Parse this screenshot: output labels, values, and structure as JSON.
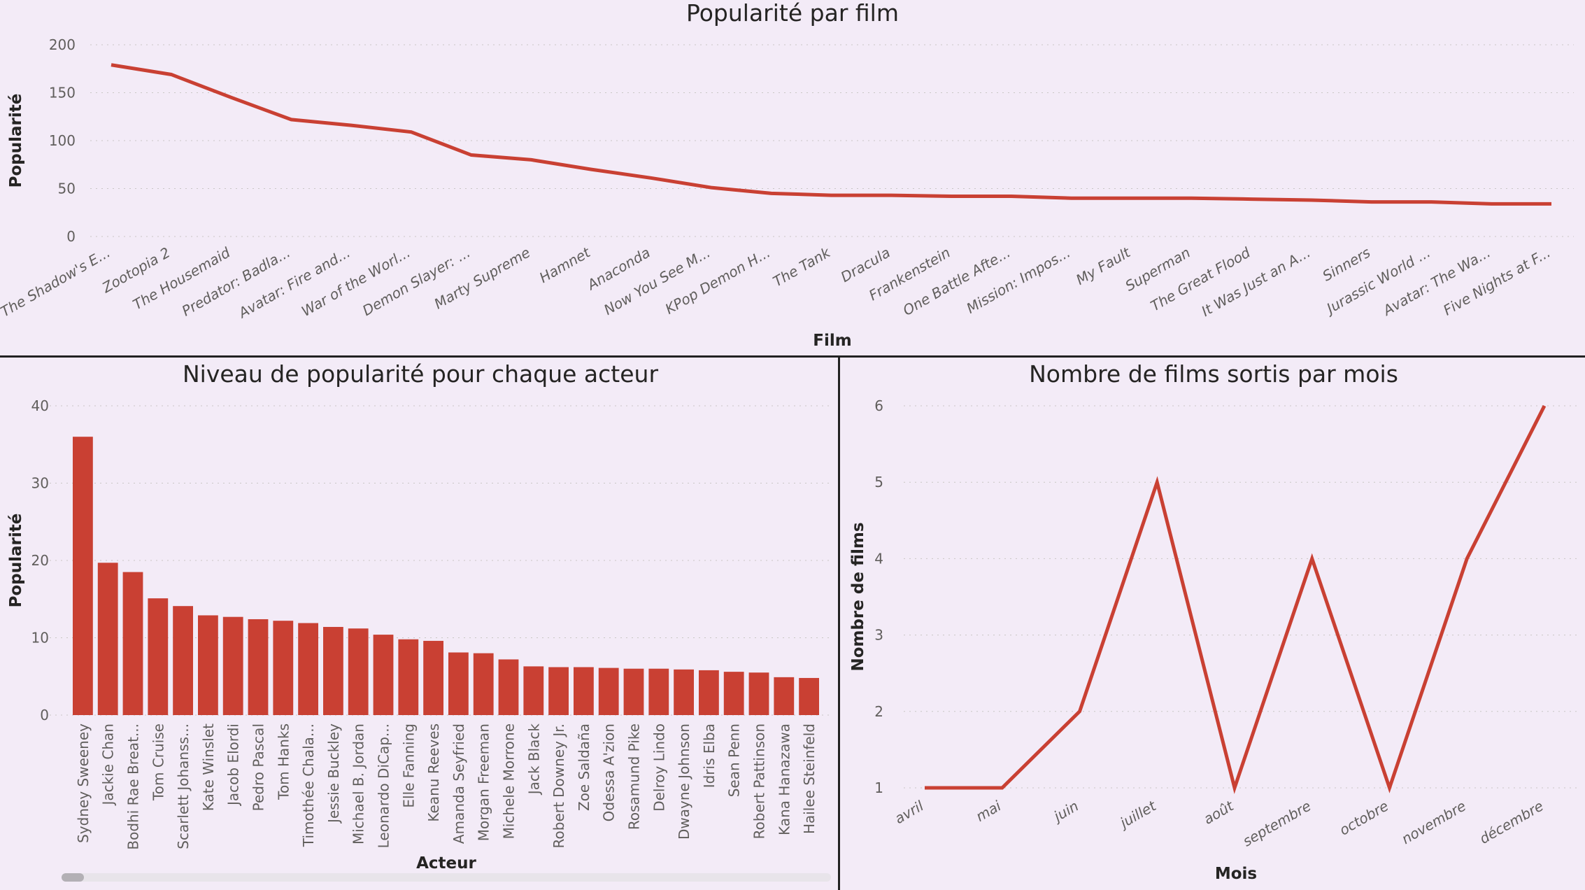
{
  "chart_data": [
    {
      "type": "line",
      "title": "Popularité par film",
      "xlabel": "Film",
      "ylabel": "Popularité",
      "ylim": [
        0,
        200
      ],
      "yticks": [
        0,
        50,
        100,
        150,
        200
      ],
      "grid": true,
      "color": "#c94033",
      "categories": [
        "The Shadow's E...",
        "Zootopia 2",
        "The Housemaid",
        "Predator: Badla...",
        "Avatar: Fire and...",
        "War of the Worl...",
        "Demon Slayer: ...",
        "Marty Supreme",
        "Hamnet",
        "Anaconda",
        "Now You See M...",
        "KPop Demon H...",
        "The Tank",
        "Dracula",
        "Frankenstein",
        "One Battle Afte...",
        "Mission: Impos...",
        "My Fault",
        "Superman",
        "The Great Flood",
        "It Was Just an A...",
        "Sinners",
        "Jurassic World ...",
        "Avatar: The Wa...",
        "Five Nights at F..."
      ],
      "values": [
        179,
        169,
        145,
        122,
        116,
        109,
        85,
        80,
        70,
        61,
        51,
        45,
        43,
        43,
        42,
        42,
        40,
        40,
        40,
        39,
        38,
        36,
        36,
        34,
        34
      ]
    },
    {
      "type": "bar",
      "title": "Niveau de popularité pour chaque acteur",
      "xlabel": "Acteur",
      "ylabel": "Popularité",
      "ylim": [
        0,
        40
      ],
      "yticks": [
        0,
        10,
        20,
        30,
        40
      ],
      "grid": true,
      "color": "#c94033",
      "categories": [
        "Sydney Sweeney",
        "Jackie Chan",
        "Bodhi Rae Breat...",
        "Tom Cruise",
        "Scarlett Johanss...",
        "Kate Winslet",
        "Jacob Elordi",
        "Pedro Pascal",
        "Tom Hanks",
        "Timothée Chala...",
        "Jessie Buckley",
        "Michael B. Jordan",
        "Leonardo DiCap...",
        "Elle Fanning",
        "Keanu Reeves",
        "Amanda Seyfried",
        "Morgan Freeman",
        "Michele Morrone",
        "Jack Black",
        "Robert Downey Jr.",
        "Zoe Saldaña",
        "Odessa A'zion",
        "Rosamund Pike",
        "Delroy Lindo",
        "Dwayne Johnson",
        "Idris Elba",
        "Sean Penn",
        "Robert Pattinson",
        "Kana Hanazawa",
        "Hailee Steinfeld"
      ],
      "values": [
        36,
        19.7,
        18.5,
        15.1,
        14.1,
        12.9,
        12.7,
        12.4,
        12.2,
        11.9,
        11.4,
        11.2,
        10.4,
        9.8,
        9.6,
        8.1,
        8.0,
        7.2,
        6.3,
        6.2,
        6.2,
        6.1,
        6.0,
        6.0,
        5.9,
        5.8,
        5.6,
        5.5,
        4.9,
        4.8
      ]
    },
    {
      "type": "line",
      "title": "Nombre de films sortis par mois",
      "xlabel": "Mois",
      "ylabel": "Nombre de films",
      "ylim": [
        1,
        6
      ],
      "yticks": [
        1,
        2,
        3,
        4,
        5,
        6
      ],
      "grid": true,
      "color": "#c94033",
      "categories": [
        "avril",
        "mai",
        "juin",
        "juillet",
        "août",
        "septembre",
        "octobre",
        "novembre",
        "décembre"
      ],
      "values": [
        1,
        1,
        2,
        5,
        1,
        4,
        1,
        4,
        6
      ]
    }
  ]
}
